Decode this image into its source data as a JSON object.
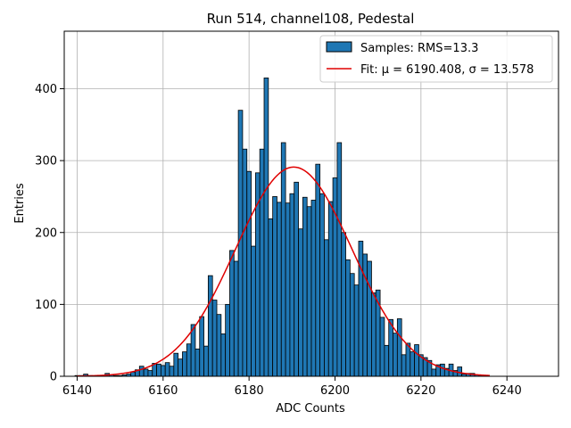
{
  "chart_data": {
    "type": "bar",
    "title": "Run 514, channel108, Pedestal",
    "xlabel": "ADC Counts",
    "ylabel": "Entries",
    "xlim": [
      6137,
      6252
    ],
    "ylim": [
      0,
      480
    ],
    "xticks": [
      6140,
      6160,
      6180,
      6200,
      6220,
      6240
    ],
    "yticks": [
      0,
      100,
      200,
      300,
      400
    ],
    "grid": true,
    "legend_position": "top-right",
    "bar_color": "#1f77b4",
    "fit_color": "#e00000",
    "histogram": {
      "name": "Samples: RMS=13.3",
      "bin_width": 1,
      "bins": [
        {
          "x": 6140,
          "y": 1
        },
        {
          "x": 6141,
          "y": 1
        },
        {
          "x": 6142,
          "y": 3
        },
        {
          "x": 6143,
          "y": 1
        },
        {
          "x": 6144,
          "y": 0
        },
        {
          "x": 6145,
          "y": 1
        },
        {
          "x": 6146,
          "y": 1
        },
        {
          "x": 6147,
          "y": 4
        },
        {
          "x": 6148,
          "y": 2
        },
        {
          "x": 6149,
          "y": 1
        },
        {
          "x": 6150,
          "y": 1
        },
        {
          "x": 6151,
          "y": 2
        },
        {
          "x": 6152,
          "y": 3
        },
        {
          "x": 6153,
          "y": 6
        },
        {
          "x": 6154,
          "y": 9
        },
        {
          "x": 6155,
          "y": 14
        },
        {
          "x": 6156,
          "y": 10
        },
        {
          "x": 6157,
          "y": 8
        },
        {
          "x": 6158,
          "y": 18
        },
        {
          "x": 6159,
          "y": 17
        },
        {
          "x": 6160,
          "y": 15
        },
        {
          "x": 6161,
          "y": 19
        },
        {
          "x": 6162,
          "y": 14
        },
        {
          "x": 6163,
          "y": 32
        },
        {
          "x": 6164,
          "y": 24
        },
        {
          "x": 6165,
          "y": 34
        },
        {
          "x": 6166,
          "y": 45
        },
        {
          "x": 6167,
          "y": 72
        },
        {
          "x": 6168,
          "y": 38
        },
        {
          "x": 6169,
          "y": 83
        },
        {
          "x": 6170,
          "y": 42
        },
        {
          "x": 6171,
          "y": 140
        },
        {
          "x": 6172,
          "y": 106
        },
        {
          "x": 6173,
          "y": 86
        },
        {
          "x": 6174,
          "y": 59
        },
        {
          "x": 6175,
          "y": 100
        },
        {
          "x": 6176,
          "y": 175
        },
        {
          "x": 6177,
          "y": 160
        },
        {
          "x": 6178,
          "y": 370
        },
        {
          "x": 6179,
          "y": 316
        },
        {
          "x": 6180,
          "y": 285
        },
        {
          "x": 6181,
          "y": 181
        },
        {
          "x": 6182,
          "y": 283
        },
        {
          "x": 6183,
          "y": 316
        },
        {
          "x": 6184,
          "y": 415
        },
        {
          "x": 6185,
          "y": 219
        },
        {
          "x": 6186,
          "y": 250
        },
        {
          "x": 6187,
          "y": 242
        },
        {
          "x": 6188,
          "y": 325
        },
        {
          "x": 6189,
          "y": 241
        },
        {
          "x": 6190,
          "y": 254
        },
        {
          "x": 6191,
          "y": 270
        },
        {
          "x": 6192,
          "y": 205
        },
        {
          "x": 6193,
          "y": 249
        },
        {
          "x": 6194,
          "y": 236
        },
        {
          "x": 6195,
          "y": 245
        },
        {
          "x": 6196,
          "y": 295
        },
        {
          "x": 6197,
          "y": 254
        },
        {
          "x": 6198,
          "y": 190
        },
        {
          "x": 6199,
          "y": 243
        },
        {
          "x": 6200,
          "y": 276
        },
        {
          "x": 6201,
          "y": 325
        },
        {
          "x": 6202,
          "y": 200
        },
        {
          "x": 6203,
          "y": 162
        },
        {
          "x": 6204,
          "y": 143
        },
        {
          "x": 6205,
          "y": 127
        },
        {
          "x": 6206,
          "y": 188
        },
        {
          "x": 6207,
          "y": 170
        },
        {
          "x": 6208,
          "y": 160
        },
        {
          "x": 6209,
          "y": 116
        },
        {
          "x": 6210,
          "y": 120
        },
        {
          "x": 6211,
          "y": 82
        },
        {
          "x": 6212,
          "y": 43
        },
        {
          "x": 6213,
          "y": 79
        },
        {
          "x": 6214,
          "y": 60
        },
        {
          "x": 6215,
          "y": 80
        },
        {
          "x": 6216,
          "y": 30
        },
        {
          "x": 6217,
          "y": 46
        },
        {
          "x": 6218,
          "y": 34
        },
        {
          "x": 6219,
          "y": 44
        },
        {
          "x": 6220,
          "y": 30
        },
        {
          "x": 6221,
          "y": 26
        },
        {
          "x": 6222,
          "y": 22
        },
        {
          "x": 6223,
          "y": 10
        },
        {
          "x": 6224,
          "y": 16
        },
        {
          "x": 6225,
          "y": 17
        },
        {
          "x": 6226,
          "y": 11
        },
        {
          "x": 6227,
          "y": 17
        },
        {
          "x": 6228,
          "y": 8
        },
        {
          "x": 6229,
          "y": 13
        },
        {
          "x": 6230,
          "y": 3
        },
        {
          "x": 6231,
          "y": 4
        },
        {
          "x": 6232,
          "y": 4
        },
        {
          "x": 6233,
          "y": 2
        },
        {
          "x": 6234,
          "y": 2
        },
        {
          "x": 6235,
          "y": 1
        }
      ]
    },
    "fit": {
      "name": "Fit: μ = 6190.408, σ = 13.578",
      "mu": 6190.408,
      "sigma": 13.578,
      "amplitude": 291,
      "x_range": [
        6140,
        6236
      ]
    }
  }
}
